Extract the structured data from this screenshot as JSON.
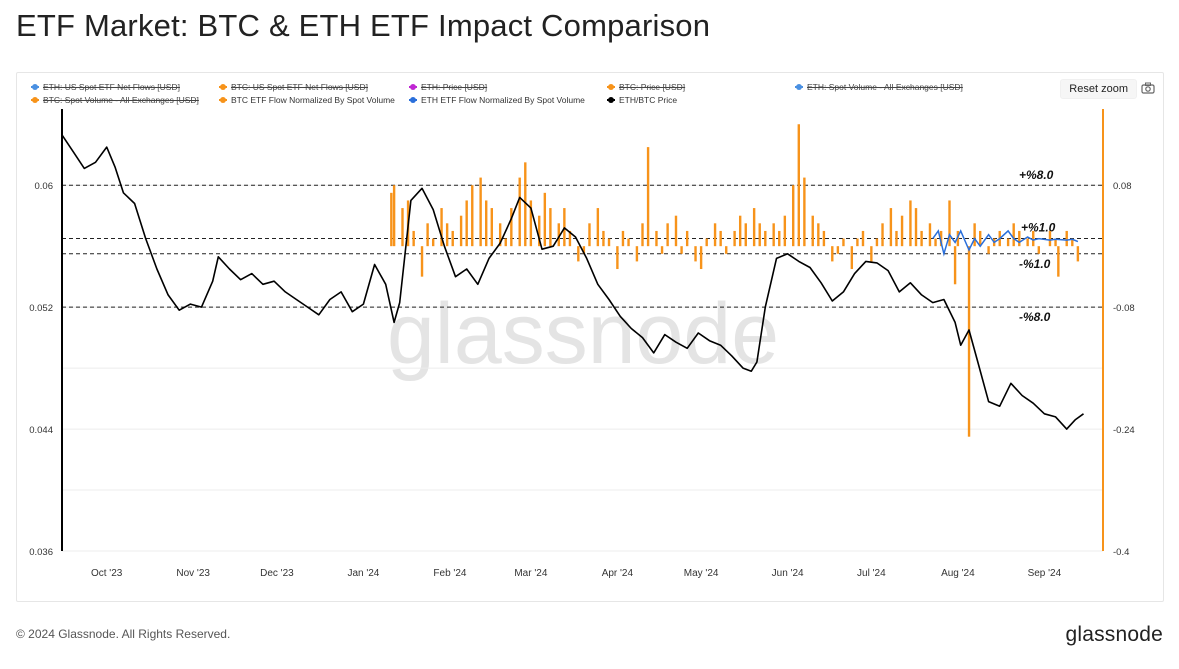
{
  "header": {
    "title": "ETF Market: BTC & ETH ETF Impact Comparison"
  },
  "toolbar": {
    "reset_zoom_label": "Reset zoom",
    "camera_icon": "camera-icon"
  },
  "legend": [
    {
      "label": "ETH: US Spot ETF Net Flows [USD]",
      "color": "#4a90e2",
      "hidden": true
    },
    {
      "label": "BTC: US Spot ETF Net Flows [USD]",
      "color": "#f7931a",
      "hidden": true
    },
    {
      "label": "ETH: Price [USD]",
      "color": "#c026d3",
      "hidden": true
    },
    {
      "label": "BTC: Price [USD]",
      "color": "#f7931a",
      "hidden": true
    },
    {
      "label": "ETH: Spot Volume - All Exchanges [USD]",
      "color": "#4a90e2",
      "hidden": true
    },
    {
      "label": "BTC: Spot Volume - All Exchanges [USD]",
      "color": "#f7931a",
      "hidden": true
    },
    {
      "label": "BTC ETF Flow Normalized By Spot Volume",
      "color": "#f7931a",
      "hidden": false
    },
    {
      "label": "ETH ETF Flow Normalized By Spot Volume",
      "color": "#2a6fdb",
      "hidden": false
    },
    {
      "label": "ETH/BTC Price",
      "color": "#000000",
      "hidden": false
    }
  ],
  "watermark": "glassnode",
  "footer": {
    "copyright": "© 2024 Glassnode. All Rights Reserved.",
    "brand": "glassnode"
  },
  "chart_data": {
    "type": "line",
    "x_start": "2023-09-15",
    "x_end": "2024-09-22",
    "x_tick_labels": [
      "Oct '23",
      "Nov '23",
      "Dec '23",
      "Jan '24",
      "Feb '24",
      "Mar '24",
      "Apr '24",
      "May '24",
      "Jun '24",
      "Jul '24",
      "Aug '24",
      "Sep '24"
    ],
    "left_axis": {
      "ticks": [
        0.06,
        0.052,
        0.044,
        0.036
      ],
      "range": [
        0.036,
        0.065
      ]
    },
    "right_axis": {
      "ticks": [
        0.08,
        -0.08,
        -0.24,
        -0.4
      ],
      "range": [
        -0.4,
        0.18
      ]
    },
    "reference_lines": [
      {
        "value": 0.08,
        "label": "+%8.0"
      },
      {
        "value": 0.01,
        "label": "+%1.0"
      },
      {
        "value": -0.01,
        "label": "-%1.0"
      },
      {
        "value": -0.08,
        "label": "-%8.0"
      }
    ],
    "colors": {
      "btc_flow": "#f7931a",
      "eth_flow": "#2a6fdb",
      "ethbtc": "#000000"
    },
    "series": [
      {
        "name": "ETH/BTC Price",
        "axis": "left",
        "x": [
          "2023-09-15",
          "2023-09-19",
          "2023-09-23",
          "2023-09-27",
          "2023-10-01",
          "2023-10-04",
          "2023-10-07",
          "2023-10-11",
          "2023-10-15",
          "2023-10-19",
          "2023-10-23",
          "2023-10-27",
          "2023-10-31",
          "2023-11-04",
          "2023-11-08",
          "2023-11-10",
          "2023-11-14",
          "2023-11-18",
          "2023-11-22",
          "2023-11-26",
          "2023-11-30",
          "2023-12-04",
          "2023-12-08",
          "2023-12-12",
          "2023-12-16",
          "2023-12-20",
          "2023-12-24",
          "2023-12-28",
          "2024-01-01",
          "2024-01-05",
          "2024-01-09",
          "2024-01-12",
          "2024-01-14",
          "2024-01-18",
          "2024-01-22",
          "2024-01-26",
          "2024-01-30",
          "2024-02-03",
          "2024-02-07",
          "2024-02-11",
          "2024-02-15",
          "2024-02-19",
          "2024-02-23",
          "2024-02-26",
          "2024-03-01",
          "2024-03-05",
          "2024-03-09",
          "2024-03-13",
          "2024-03-17",
          "2024-03-21",
          "2024-03-25",
          "2024-03-29",
          "2024-04-02",
          "2024-04-06",
          "2024-04-10",
          "2024-04-14",
          "2024-04-18",
          "2024-04-22",
          "2024-04-26",
          "2024-04-30",
          "2024-05-04",
          "2024-05-08",
          "2024-05-12",
          "2024-05-16",
          "2024-05-19",
          "2024-05-21",
          "2024-05-24",
          "2024-05-28",
          "2024-06-01",
          "2024-06-05",
          "2024-06-09",
          "2024-06-13",
          "2024-06-17",
          "2024-06-21",
          "2024-06-25",
          "2024-06-29",
          "2024-07-03",
          "2024-07-07",
          "2024-07-11",
          "2024-07-15",
          "2024-07-19",
          "2024-07-23",
          "2024-07-27",
          "2024-07-31",
          "2024-08-02",
          "2024-08-05",
          "2024-08-08",
          "2024-08-12",
          "2024-08-16",
          "2024-08-20",
          "2024-08-24",
          "2024-08-28",
          "2024-09-01",
          "2024-09-05",
          "2024-09-09",
          "2024-09-12",
          "2024-09-15"
        ],
        "values": [
          0.0633,
          0.0622,
          0.0611,
          0.0615,
          0.0625,
          0.0612,
          0.0595,
          0.0588,
          0.0565,
          0.0545,
          0.0528,
          0.0518,
          0.0522,
          0.052,
          0.0537,
          0.0553,
          0.0545,
          0.0538,
          0.0542,
          0.0535,
          0.0537,
          0.053,
          0.0525,
          0.052,
          0.0515,
          0.0525,
          0.053,
          0.0517,
          0.0522,
          0.0548,
          0.0535,
          0.051,
          0.0523,
          0.059,
          0.0598,
          0.0584,
          0.056,
          0.054,
          0.0545,
          0.0535,
          0.0552,
          0.0562,
          0.0578,
          0.0592,
          0.0585,
          0.0558,
          0.056,
          0.0572,
          0.0566,
          0.0552,
          0.0535,
          0.0525,
          0.0514,
          0.0506,
          0.05,
          0.049,
          0.0502,
          0.0497,
          0.0493,
          0.0503,
          0.0498,
          0.0495,
          0.0488,
          0.048,
          0.0478,
          0.0484,
          0.052,
          0.0552,
          0.0555,
          0.055,
          0.0546,
          0.0536,
          0.0524,
          0.053,
          0.0542,
          0.055,
          0.0549,
          0.0544,
          0.053,
          0.0536,
          0.0528,
          0.0523,
          0.0525,
          0.051,
          0.0495,
          0.0505,
          0.0485,
          0.0458,
          0.0455,
          0.047,
          0.0462,
          0.0457,
          0.045,
          0.0448,
          0.044,
          0.0446,
          0.045
        ]
      },
      {
        "name": "BTC ETF Flow Normalized By Spot Volume",
        "axis": "right",
        "x": [
          "2024-01-11",
          "2024-01-12",
          "2024-01-15",
          "2024-01-17",
          "2024-01-19",
          "2024-01-22",
          "2024-01-24",
          "2024-01-26",
          "2024-01-29",
          "2024-01-31",
          "2024-02-02",
          "2024-02-05",
          "2024-02-07",
          "2024-02-09",
          "2024-02-12",
          "2024-02-14",
          "2024-02-16",
          "2024-02-19",
          "2024-02-21",
          "2024-02-23",
          "2024-02-26",
          "2024-02-28",
          "2024-03-01",
          "2024-03-04",
          "2024-03-06",
          "2024-03-08",
          "2024-03-11",
          "2024-03-13",
          "2024-03-15",
          "2024-03-18",
          "2024-03-20",
          "2024-03-22",
          "2024-03-25",
          "2024-03-27",
          "2024-03-29",
          "2024-04-01",
          "2024-04-03",
          "2024-04-05",
          "2024-04-08",
          "2024-04-10",
          "2024-04-12",
          "2024-04-15",
          "2024-04-17",
          "2024-04-19",
          "2024-04-22",
          "2024-04-24",
          "2024-04-26",
          "2024-04-29",
          "2024-05-01",
          "2024-05-03",
          "2024-05-06",
          "2024-05-08",
          "2024-05-10",
          "2024-05-13",
          "2024-05-15",
          "2024-05-17",
          "2024-05-20",
          "2024-05-22",
          "2024-05-24",
          "2024-05-27",
          "2024-05-29",
          "2024-05-31",
          "2024-06-03",
          "2024-06-05",
          "2024-06-07",
          "2024-06-10",
          "2024-06-12",
          "2024-06-14",
          "2024-06-17",
          "2024-06-19",
          "2024-06-21",
          "2024-06-24",
          "2024-06-26",
          "2024-06-28",
          "2024-07-01",
          "2024-07-03",
          "2024-07-05",
          "2024-07-08",
          "2024-07-10",
          "2024-07-12",
          "2024-07-15",
          "2024-07-17",
          "2024-07-19",
          "2024-07-22",
          "2024-07-24",
          "2024-07-26",
          "2024-07-29",
          "2024-07-31",
          "2024-08-01",
          "2024-08-05",
          "2024-08-07",
          "2024-08-09",
          "2024-08-12",
          "2024-08-14",
          "2024-08-16",
          "2024-08-19",
          "2024-08-21",
          "2024-08-23",
          "2024-08-26",
          "2024-08-28",
          "2024-08-30",
          "2024-09-03",
          "2024-09-05",
          "2024-09-06",
          "2024-09-09",
          "2024-09-11",
          "2024-09-13"
        ],
        "values": [
          0.07,
          0.08,
          0.05,
          0.06,
          0.02,
          -0.04,
          0.03,
          0.01,
          0.05,
          0.03,
          0.02,
          0.04,
          0.06,
          0.08,
          0.09,
          0.06,
          0.05,
          0.03,
          0.01,
          0.05,
          0.09,
          0.11,
          0.06,
          0.04,
          0.07,
          0.05,
          0.03,
          0.05,
          0.02,
          -0.02,
          -0.01,
          0.03,
          0.05,
          0.02,
          0.01,
          -0.03,
          0.02,
          0.01,
          -0.02,
          0.03,
          0.13,
          0.02,
          -0.01,
          0.03,
          0.04,
          -0.01,
          0.02,
          -0.02,
          -0.03,
          0.01,
          0.03,
          0.02,
          -0.01,
          0.02,
          0.04,
          0.03,
          0.05,
          0.03,
          0.02,
          0.03,
          0.02,
          0.04,
          0.08,
          0.16,
          0.09,
          0.04,
          0.03,
          0.02,
          -0.02,
          -0.01,
          0.01,
          -0.03,
          0.01,
          0.02,
          -0.02,
          0.01,
          0.03,
          0.05,
          0.02,
          0.04,
          0.06,
          0.05,
          0.02,
          0.03,
          0.01,
          0.02,
          0.06,
          -0.05,
          0.02,
          -0.25,
          0.03,
          0.02,
          -0.01,
          0.01,
          0.02,
          0.01,
          0.03,
          0.02,
          0.01,
          0.02,
          -0.01,
          0.02,
          0.01,
          -0.04,
          0.02,
          0.01,
          -0.02
        ]
      },
      {
        "name": "ETH ETF Flow Normalized By Spot Volume",
        "axis": "right",
        "x": [
          "2024-07-23",
          "2024-07-25",
          "2024-07-27",
          "2024-07-29",
          "2024-07-31",
          "2024-08-02",
          "2024-08-05",
          "2024-08-07",
          "2024-08-09",
          "2024-08-12",
          "2024-08-14",
          "2024-08-16",
          "2024-08-19",
          "2024-08-21",
          "2024-08-23",
          "2024-08-26",
          "2024-08-28",
          "2024-08-30",
          "2024-09-03",
          "2024-09-05",
          "2024-09-09",
          "2024-09-11",
          "2024-09-13"
        ],
        "values": [
          0.01,
          0.02,
          -0.01,
          0.015,
          0.005,
          0.02,
          -0.005,
          0.01,
          0.0,
          0.015,
          0.005,
          0.01,
          0.02,
          0.01,
          0.005,
          0.012,
          0.008,
          0.01,
          0.008,
          0.009,
          0.008,
          0.009,
          0.006
        ]
      }
    ]
  }
}
